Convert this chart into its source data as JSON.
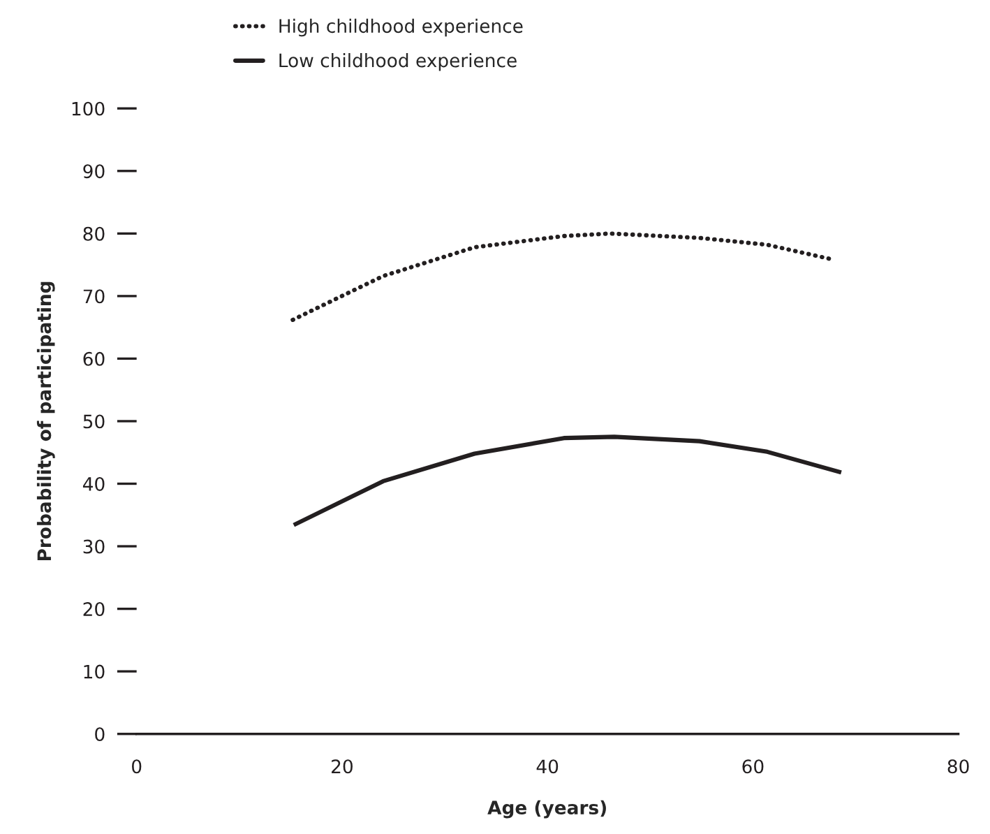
{
  "chart_data": {
    "type": "line",
    "xlabel": "Age (years)",
    "ylabel": "Probability of participating",
    "xlim": [
      0,
      80
    ],
    "xticks": [
      0,
      20,
      40,
      60,
      80
    ],
    "ylim": [
      0,
      100
    ],
    "yticks": [
      0,
      10,
      20,
      30,
      40,
      50,
      60,
      70,
      80,
      90,
      100
    ],
    "grid": false,
    "legend": "top left",
    "marker": "none",
    "series": [
      {
        "name": "High childhood experience",
        "color": "#231f20",
        "line_style": "dotted",
        "x": [
          15.2,
          24.0,
          32.9,
          41.6,
          46.1,
          54.8,
          61.4,
          67.9
        ],
        "values": [
          66.2,
          73.2,
          77.8,
          79.6,
          80.0,
          79.3,
          78.2,
          75.8
        ]
      },
      {
        "name": "Low childhood experience",
        "color": "#231f20",
        "line_style": "solid",
        "x": [
          15.3,
          24.0,
          32.9,
          41.6,
          46.5,
          54.8,
          61.4,
          68.6
        ],
        "values": [
          33.4,
          40.4,
          44.8,
          47.3,
          47.5,
          46.8,
          45.1,
          41.8
        ]
      }
    ]
  }
}
